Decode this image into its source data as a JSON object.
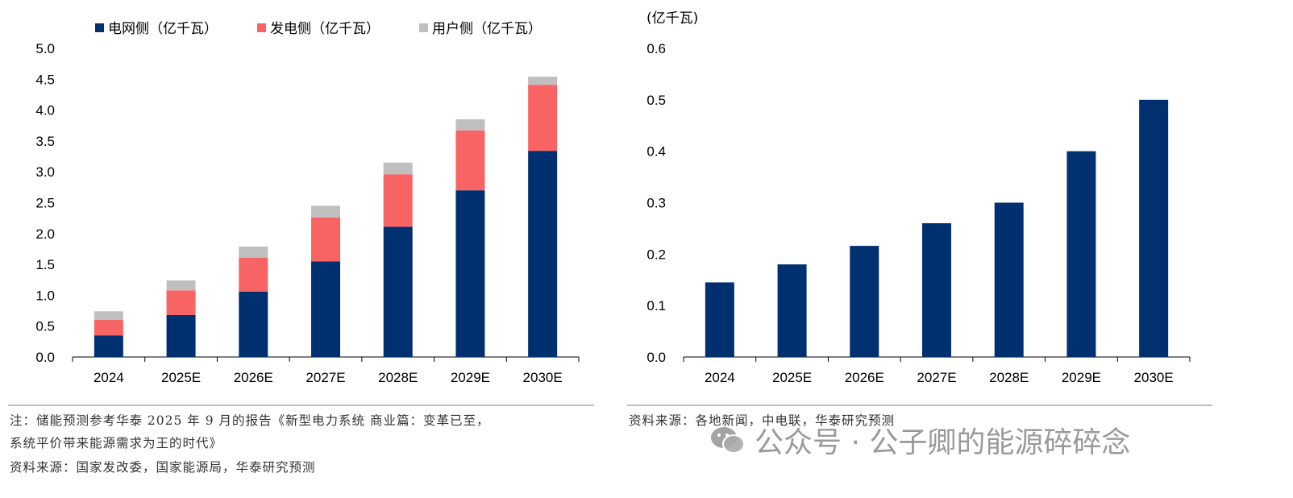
{
  "chart_data": [
    {
      "type": "bar",
      "stacked": true,
      "categories": [
        "2024",
        "2025E",
        "2026E",
        "2027E",
        "2028E",
        "2029E",
        "2030E"
      ],
      "series": [
        {
          "name": "电网侧（亿千瓦）",
          "color": "#003070",
          "values": [
            0.35,
            0.68,
            1.06,
            1.55,
            2.11,
            2.7,
            3.34
          ]
        },
        {
          "name": "发电侧（亿千瓦）",
          "color": "#f86464",
          "values": [
            0.25,
            0.4,
            0.55,
            0.71,
            0.85,
            0.97,
            1.07
          ]
        },
        {
          "name": "用户侧（亿千瓦）",
          "color": "#bfbfbf",
          "values": [
            0.14,
            0.16,
            0.18,
            0.19,
            0.19,
            0.18,
            0.13
          ]
        }
      ],
      "ylim": [
        0,
        5.0
      ],
      "yticks": [
        "0.0",
        "0.5",
        "1.0",
        "1.5",
        "2.0",
        "2.5",
        "3.0",
        "3.5",
        "4.0",
        "4.5",
        "5.0"
      ],
      "legend": "top"
    },
    {
      "type": "bar",
      "categories": [
        "2024",
        "2025E",
        "2026E",
        "2027E",
        "2028E",
        "2029E",
        "2030E"
      ],
      "series": [
        {
          "name": "",
          "color": "#003070",
          "values": [
            0.145,
            0.18,
            0.216,
            0.26,
            0.3,
            0.4,
            0.5
          ]
        }
      ],
      "ylabel": "(亿千瓦)",
      "ylim": [
        0,
        0.6
      ],
      "yticks": [
        "0.0",
        "0.1",
        "0.2",
        "0.3",
        "0.4",
        "0.5",
        "0.6"
      ]
    }
  ],
  "notes": {
    "left_note_1": "注：储能预测参考华泰 2025 年 9 月的报告《新型电力系统 商业篇：变革已至，",
    "left_note_2": "系统平价带来能源需求为王的时代》",
    "left_source": "资料来源：国家发改委，国家能源局，华泰研究预测",
    "right_source": "资料来源：各地新闻，中电联，华泰研究预测"
  },
  "watermark": "公众号 · 公子卿的能源碎碎念"
}
